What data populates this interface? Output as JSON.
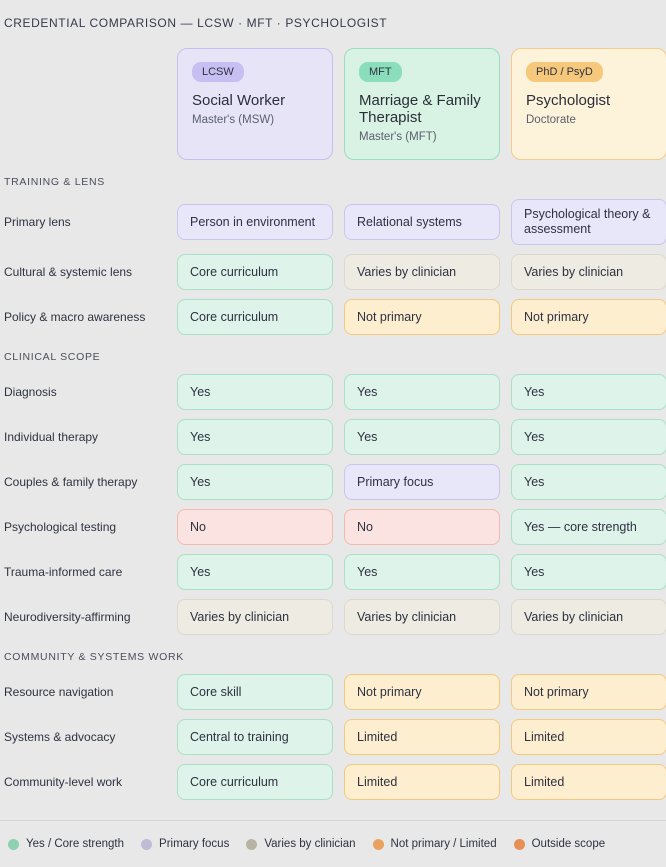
{
  "chart_data": {
    "type": "table",
    "title": "CREDENTIAL COMPARISON — LCSW · MFT · PSYCHOLOGIST",
    "columns": [
      {
        "badge": "LCSW",
        "title": "Social Worker",
        "subtitle": "Master's (MSW)",
        "theme": "lavender"
      },
      {
        "badge": "MFT",
        "title": "Marriage & Family Therapist",
        "subtitle": "Master's (MFT)",
        "theme": "green"
      },
      {
        "badge": "PhD / PsyD",
        "title": "Psychologist",
        "subtitle": "Doctorate",
        "theme": "amber"
      }
    ],
    "sections": [
      {
        "label": "TRAINING & LENS",
        "rows": [
          {
            "label": "Primary lens",
            "cells": [
              {
                "text": "Person in environment",
                "type": "primary"
              },
              {
                "text": "Relational systems",
                "type": "primary"
              },
              {
                "text": "Psychological theory & assessment",
                "type": "primary"
              }
            ]
          },
          {
            "label": "Cultural & systemic lens",
            "cells": [
              {
                "text": "Core curriculum",
                "type": "yes"
              },
              {
                "text": "Varies by clinician",
                "type": "varies"
              },
              {
                "text": "Varies by clinician",
                "type": "varies"
              }
            ]
          },
          {
            "label": "Policy & macro awareness",
            "cells": [
              {
                "text": "Core curriculum",
                "type": "yes"
              },
              {
                "text": "Not primary",
                "type": "limited"
              },
              {
                "text": "Not primary",
                "type": "limited"
              }
            ]
          }
        ]
      },
      {
        "label": "CLINICAL SCOPE",
        "rows": [
          {
            "label": "Diagnosis",
            "cells": [
              {
                "text": "Yes",
                "type": "yes"
              },
              {
                "text": "Yes",
                "type": "yes"
              },
              {
                "text": "Yes",
                "type": "yes"
              }
            ]
          },
          {
            "label": "Individual therapy",
            "cells": [
              {
                "text": "Yes",
                "type": "yes"
              },
              {
                "text": "Yes",
                "type": "yes"
              },
              {
                "text": "Yes",
                "type": "yes"
              }
            ]
          },
          {
            "label": "Couples & family therapy",
            "cells": [
              {
                "text": "Yes",
                "type": "yes"
              },
              {
                "text": "Primary focus",
                "type": "primary"
              },
              {
                "text": "Yes",
                "type": "yes"
              }
            ]
          },
          {
            "label": "Psychological testing",
            "cells": [
              {
                "text": "No",
                "type": "no"
              },
              {
                "text": "No",
                "type": "no"
              },
              {
                "text": "Yes — core strength",
                "type": "yes"
              }
            ]
          },
          {
            "label": "Trauma-informed care",
            "cells": [
              {
                "text": "Yes",
                "type": "yes"
              },
              {
                "text": "Yes",
                "type": "yes"
              },
              {
                "text": "Yes",
                "type": "yes"
              }
            ]
          },
          {
            "label": "Neurodiversity-affirming",
            "cells": [
              {
                "text": "Varies by clinician",
                "type": "varies"
              },
              {
                "text": "Varies by clinician",
                "type": "varies"
              },
              {
                "text": "Varies by clinician",
                "type": "varies"
              }
            ]
          }
        ]
      },
      {
        "label": "COMMUNITY & SYSTEMS WORK",
        "rows": [
          {
            "label": "Resource navigation",
            "cells": [
              {
                "text": "Core skill",
                "type": "yes"
              },
              {
                "text": "Not primary",
                "type": "limited"
              },
              {
                "text": "Not primary",
                "type": "limited"
              }
            ]
          },
          {
            "label": "Systems & advocacy",
            "cells": [
              {
                "text": "Central to training",
                "type": "yes"
              },
              {
                "text": "Limited",
                "type": "limited"
              },
              {
                "text": "Limited",
                "type": "limited"
              }
            ]
          },
          {
            "label": "Community-level work",
            "cells": [
              {
                "text": "Core curriculum",
                "type": "yes"
              },
              {
                "text": "Limited",
                "type": "limited"
              },
              {
                "text": "Limited",
                "type": "limited"
              }
            ]
          }
        ]
      }
    ],
    "legend": [
      {
        "label": "Yes / Core strength",
        "color": "#8fd0b0"
      },
      {
        "label": "Primary focus",
        "color": "#bfbcd8"
      },
      {
        "label": "Varies by clinician",
        "color": "#b7b4a4"
      },
      {
        "label": "Not primary / Limited",
        "color": "#eaa35f"
      },
      {
        "label": "Outside scope",
        "color": "#e88f55"
      }
    ],
    "status_colors": {
      "yes": "#def3e9",
      "primary": "#e8e6f9",
      "varies": "#edebe2",
      "limited": "#fdeed0",
      "no": "#fae3e0"
    }
  }
}
